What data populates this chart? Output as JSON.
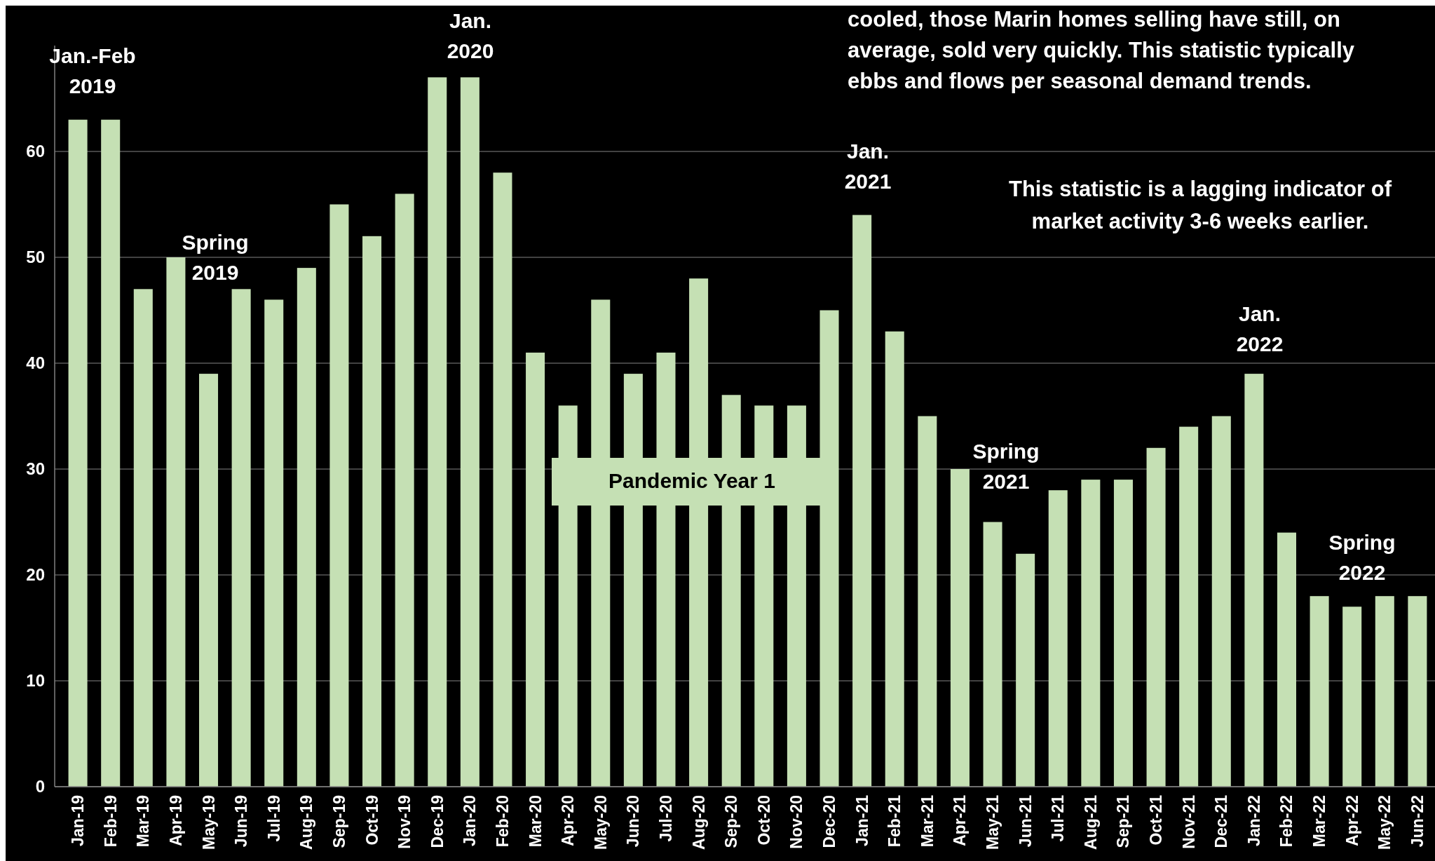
{
  "chart_data": {
    "type": "bar",
    "categories": [
      "Jan-19",
      "Feb-19",
      "Mar-19",
      "Apr-19",
      "May-19",
      "Jun-19",
      "Jul-19",
      "Aug-19",
      "Sep-19",
      "Oct-19",
      "Nov-19",
      "Dec-19",
      "Jan-20",
      "Feb-20",
      "Mar-20",
      "Apr-20",
      "May-20",
      "Jun-20",
      "Jul-20",
      "Aug-20",
      "Sep-20",
      "Oct-20",
      "Nov-20",
      "Dec-20",
      "Jan-21",
      "Feb-21",
      "Mar-21",
      "Apr-21",
      "May-21",
      "Jun-21",
      "Jul-21",
      "Aug-21",
      "Sep-21",
      "Oct-21",
      "Nov-21",
      "Dec-21",
      "Jan-22",
      "Feb-22",
      "Mar-22",
      "Apr-22",
      "May-22",
      "Jun-22"
    ],
    "values": [
      63,
      63,
      47,
      50,
      39,
      47,
      46,
      49,
      55,
      52,
      56,
      67,
      67,
      58,
      41,
      36,
      46,
      39,
      41,
      48,
      37,
      36,
      36,
      45,
      54,
      43,
      35,
      30,
      25,
      22,
      28,
      29,
      29,
      32,
      34,
      35,
      39,
      24,
      18,
      17,
      18,
      18
    ],
    "color": "#c5e0b4",
    "ylim": [
      0,
      70
    ],
    "yticks": [
      0,
      10,
      20,
      30,
      40,
      50,
      60
    ],
    "grid": "y",
    "annotations": [
      "cooled, those Marin homes selling have still, on average, sold very quickly. This statistic typically ebbs and flows per seasonal demand trends.",
      "This statistic is a lagging indicator of market activity 3-6 weeks earlier.",
      "Jan.-Feb 2019",
      "Jan. 2020",
      "Spring 2019",
      "Pandemic Year 1",
      "Jan. 2021",
      "Spring 2021",
      "Jan. 2022",
      "Spring 2022"
    ]
  }
}
